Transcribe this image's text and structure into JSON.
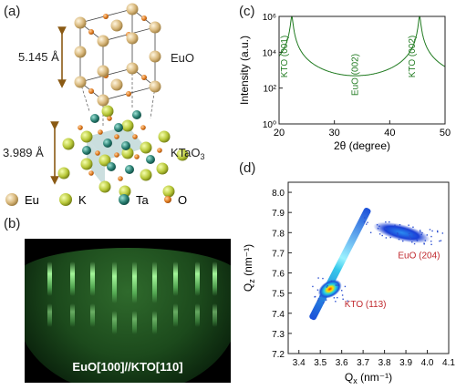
{
  "panels": {
    "a": "(a)",
    "b": "(b)",
    "c": "(c)",
    "d": "(d)"
  },
  "crystal": {
    "euo_lattice": "5.145 Å",
    "euo_label": "EuO",
    "kto_lattice": "3.989 Å",
    "kto_label": "KTaO",
    "kto_subscript": "3",
    "legend": [
      {
        "symbol": "Eu",
        "color": "#d8b77a"
      },
      {
        "symbol": "K",
        "color": "#b9c93a"
      },
      {
        "symbol": "Ta",
        "color": "#2a7f72"
      },
      {
        "symbol": "O",
        "color": "#e07b20"
      }
    ]
  },
  "rheed": {
    "caption": "EuO[100]//KTO[110]"
  },
  "colors": {
    "xrd_line": "#1f7a1f",
    "xrd_label": "#1f7a1f",
    "rsm_label": "#c0282d",
    "arrow": "#8a5a14"
  },
  "chart_data": [
    {
      "type": "line",
      "xlabel": "2θ (degree)",
      "ylabel": "Intensity (a.u.)",
      "xlim": [
        20,
        50
      ],
      "ylim_log10": [
        0,
        6
      ],
      "log_y": true,
      "x_ticks": [
        "20",
        "30",
        "40",
        "50"
      ],
      "y_ticks": [
        "10⁰",
        "10²",
        "10⁴",
        "10⁶"
      ],
      "peaks": [
        {
          "label": "KTO (001)",
          "x": 22.3,
          "y": 1000000
        },
        {
          "label": "EuO (002)",
          "x": 35.1,
          "y": 10
        },
        {
          "label": "KTO (002)",
          "x": 45.4,
          "y": 1000000
        }
      ],
      "baseline": 1.3
    },
    {
      "type": "heatmap",
      "xlabel": "Q",
      "xlabel_sub": "x",
      "xlabel_unit": " (nm⁻¹)",
      "ylabel": "Q",
      "ylabel_sub": "z",
      "ylabel_unit": " (nm⁻¹)",
      "xlim": [
        3.35,
        4.1
      ],
      "ylim": [
        7.2,
        8.05
      ],
      "x_ticks": [
        "3.4",
        "3.5",
        "3.6",
        "3.7",
        "3.8",
        "3.9",
        "4.0",
        "4.1"
      ],
      "y_ticks": [
        "7.2",
        "7.3",
        "7.4",
        "7.5",
        "7.6",
        "7.7",
        "7.8",
        "7.9",
        "8.0"
      ],
      "spots": [
        {
          "label": "KTO (113)",
          "qx": 3.545,
          "qz": 7.52
        },
        {
          "label": "EuO (204)",
          "qx": 3.88,
          "qz": 7.8
        }
      ]
    }
  ]
}
